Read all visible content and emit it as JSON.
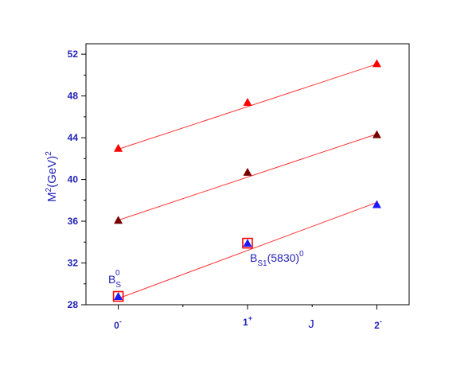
{
  "chart_data": {
    "type": "scatter",
    "xlabel": "J",
    "ylabel": {
      "base": "M",
      "sup1": "2",
      "mid": "(GeV)",
      "sup2": "2"
    },
    "x_categories": [
      {
        "base": "0",
        "sup": "-"
      },
      {
        "base": "1",
        "sup": "+"
      },
      {
        "base": "2",
        "sup": "-"
      }
    ],
    "xlim": [
      -0.25,
      2.25
    ],
    "ylim": [
      28,
      53
    ],
    "yticks": [
      28,
      32,
      36,
      40,
      44,
      48,
      52
    ],
    "grid": false,
    "series": [
      {
        "color": "#ff0000",
        "x": [
          0,
          1,
          2
        ],
        "y": [
          43.0,
          47.4,
          51.1
        ],
        "fit": [
          42.9,
          51.05
        ]
      },
      {
        "color": "#7a0000",
        "x": [
          0,
          1,
          2
        ],
        "y": [
          36.1,
          40.7,
          44.3
        ],
        "fit": [
          36.1,
          44.35
        ]
      },
      {
        "color": "#1a1aff",
        "x": [
          0,
          1,
          2
        ],
        "y": [
          28.8,
          33.9,
          37.6
        ],
        "fit": [
          28.6,
          37.8
        ]
      }
    ],
    "experimental_points": [
      {
        "x": 0,
        "y": 28.8,
        "color": "#ff0000"
      },
      {
        "x": 1,
        "y": 33.9,
        "color": "#ff0000"
      }
    ],
    "annotations": [
      {
        "id": "bs0",
        "base": "B",
        "sub": "S",
        "sup": "0",
        "x": 0,
        "y": 28.8
      },
      {
        "id": "bs1",
        "base": "B",
        "sub": "S1",
        "mid": "(5830)",
        "sup": "0",
        "x": 1,
        "y": 33.9
      }
    ],
    "line_color": "#ff3333",
    "axis_color": "#000000"
  }
}
